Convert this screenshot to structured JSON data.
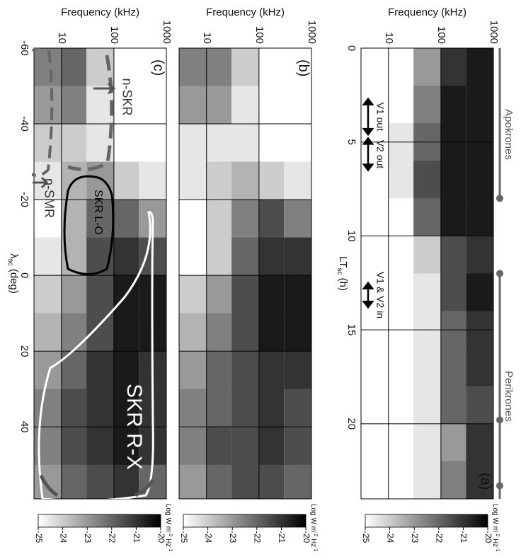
{
  "chart_data": [
    {
      "type": "heatmap",
      "panel_label": "(a)",
      "ylabel": "Frequency (kHz)",
      "xlabel": {
        "main": "LT",
        "sub": "sc",
        "unit": " (h)"
      },
      "x": [
        1,
        3,
        5,
        7,
        9,
        11,
        13,
        15,
        17,
        19,
        21,
        23
      ],
      "y_edges": [
        3,
        10,
        30,
        100,
        300,
        1000
      ],
      "z": [
        [
          -25,
          -25,
          -23,
          -21,
          -20.5
        ],
        [
          -25,
          -25,
          -22.5,
          -20.5,
          -20.5
        ],
        [
          -25,
          -24.5,
          -22,
          -20.5,
          -20.5
        ],
        [
          -25,
          -24.5,
          -21.5,
          -20.5,
          -20.5
        ],
        [
          -25,
          -25,
          -22,
          -20.5,
          -20.5
        ],
        [
          -25,
          -25,
          -24,
          -21.5,
          -21
        ],
        [
          -25,
          -25,
          -24.5,
          -21.5,
          -20.5
        ],
        [
          -25,
          -25,
          -24.5,
          -22,
          -21
        ],
        [
          -25,
          -25,
          -24.5,
          -22,
          -21
        ],
        [
          -25,
          -25,
          -24.5,
          -22,
          -21.5
        ],
        [
          -25,
          -25,
          -24.5,
          -23,
          -21
        ],
        [
          -25,
          -25,
          -24.5,
          -22.5,
          -21
        ]
      ],
      "xlim": [
        0,
        24
      ],
      "ylim": [
        3,
        1000
      ],
      "log_y": true,
      "xticks": [
        0,
        5,
        10,
        15,
        20
      ],
      "yticks": [
        10,
        100,
        1000
      ],
      "xtick_labels": true,
      "grid": true,
      "orbit_labels": [
        "Apokrones",
        "Perikrones"
      ],
      "orbit_segments": [
        [
          0,
          8
        ],
        [
          12,
          24
        ]
      ],
      "orbit_dots": [
        8,
        12,
        19.8,
        23.3
      ],
      "arrows": [
        {
          "label": "V1 out",
          "range": [
            2.7,
            4.6
          ]
        },
        {
          "label": "V2 out",
          "range": [
            4.8,
            6.5
          ]
        },
        {
          "label": "V1 & V2 in",
          "range": [
            12.5,
            13.8
          ]
        }
      ],
      "colorbar": {
        "label": {
          "main": "Log W m",
          "sup1": "-2",
          "mid": " Hz",
          "sup2": "-1"
        },
        "lim": [
          -25,
          -20
        ],
        "ticks": [
          -25,
          -24,
          -23,
          -22,
          -21,
          -20
        ]
      }
    },
    {
      "type": "heatmap",
      "panel_label": "(b)",
      "ylabel": "Frequency (kHz)",
      "x": [
        -55,
        -45,
        -35,
        -25,
        -15,
        -5,
        5,
        15,
        25,
        35,
        45,
        55
      ],
      "y_edges": [
        3,
        10,
        30,
        100,
        300,
        1000
      ],
      "z": [
        [
          -22.5,
          -22.5,
          -24,
          -25,
          -25
        ],
        [
          -23,
          -23,
          -24.5,
          -25,
          -25
        ],
        [
          -24.5,
          -24.5,
          -24.5,
          -25,
          -25
        ],
        [
          -24.5,
          -24,
          -23.5,
          -24,
          -24.5
        ],
        [
          -25,
          -24,
          -22.5,
          -21.5,
          -22.5
        ],
        [
          -25,
          -24,
          -22,
          -21,
          -21
        ],
        [
          -24,
          -23,
          -21.5,
          -20.5,
          -20.5
        ],
        [
          -23.5,
          -22.5,
          -21.5,
          -20.5,
          -20.5
        ],
        [
          -23,
          -22,
          -21.5,
          -21,
          -21
        ],
        [
          -22.5,
          -22,
          -21.5,
          -21,
          -21.5
        ],
        [
          -22.5,
          -21.5,
          -21.5,
          -21,
          -21.5
        ],
        [
          -23,
          -22,
          -21.5,
          -21.5,
          -22
        ]
      ],
      "xlim": [
        -60,
        59
      ],
      "ylim": [
        3,
        1000
      ],
      "log_y": true,
      "xticks": [
        -60,
        -40,
        -20,
        0,
        20,
        40
      ],
      "yticks": [
        10,
        100,
        1000
      ],
      "xtick_labels": false,
      "grid": true,
      "colorbar": {
        "label": {
          "main": "Log W m",
          "sup1": "-2",
          "mid": " Hz",
          "sup2": "-1"
        },
        "lim": [
          -25,
          -20
        ],
        "ticks": [
          -25,
          -24,
          -23,
          -22,
          -21,
          -20
        ]
      }
    },
    {
      "type": "heatmap",
      "panel_label": "(c)",
      "ylabel": "Frequency (kHz)",
      "xlabel": {
        "main": "λ",
        "sub": "sc",
        "unit": " (deg)"
      },
      "x": [
        -55,
        -45,
        -35,
        -25,
        -15,
        -5,
        5,
        15,
        25,
        35,
        45,
        55
      ],
      "y_edges": [
        3,
        10,
        30,
        100,
        300,
        1000
      ],
      "z": [
        [
          -22.5,
          -22,
          -24,
          -25,
          -25
        ],
        [
          -23,
          -22.5,
          -24.5,
          -25,
          -25
        ],
        [
          -24,
          -24,
          -24.5,
          -25,
          -25
        ],
        [
          -24.5,
          -23.5,
          -23,
          -24,
          -24.5
        ],
        [
          -25,
          -23.5,
          -22,
          -22,
          -23
        ],
        [
          -24.5,
          -23.5,
          -21.5,
          -21,
          -21.5
        ],
        [
          -24,
          -23,
          -21.5,
          -20.5,
          -20.5
        ],
        [
          -23.5,
          -22.5,
          -21.5,
          -20.5,
          -20.5
        ],
        [
          -23,
          -22,
          -21,
          -20.5,
          -21
        ],
        [
          -22.5,
          -21.5,
          -21,
          -20.5,
          -21
        ],
        [
          -22.5,
          -21.5,
          -21,
          -20.5,
          -21
        ],
        [
          -23,
          -22,
          -21.5,
          -21,
          -22
        ]
      ],
      "xlim": [
        -60,
        59
      ],
      "ylim": [
        3,
        1000
      ],
      "log_y": true,
      "xticks": [
        -60,
        -40,
        -20,
        0,
        20,
        40
      ],
      "yticks": [
        10,
        100,
        1000
      ],
      "xtick_labels": true,
      "grid": true,
      "region_labels": [
        "n-SKR",
        "n-SMR",
        "SKR L-O",
        "SKR R-X"
      ],
      "colorbar": {
        "label": {
          "main": "Log W m",
          "sup1": "-2",
          "mid": " Hz",
          "sup2": "-1"
        },
        "lim": [
          -25,
          -20
        ],
        "ticks": [
          -25,
          -24,
          -23,
          -22,
          -21,
          -20
        ]
      }
    }
  ]
}
